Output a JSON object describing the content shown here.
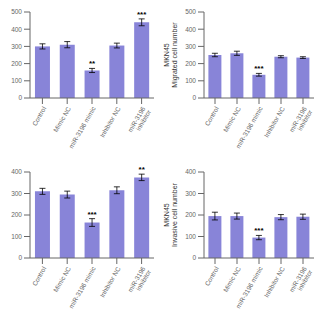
{
  "chart_data": [
    {
      "type": "bar",
      "categories": [
        "Control",
        "Mimic NC",
        "miR-3196 mimic",
        "Inhibitor NC",
        "miR-3196 inhibitor"
      ],
      "values": [
        300,
        310,
        160,
        305,
        440
      ],
      "errors": [
        15,
        18,
        12,
        14,
        20
      ],
      "annotations": [
        null,
        null,
        "**",
        null,
        "***"
      ],
      "ylim": [
        0,
        500
      ],
      "yticks": [
        0,
        100,
        200,
        300,
        400,
        500
      ],
      "color": "#8884d8"
    },
    {
      "type": "bar",
      "categories": [
        "Control",
        "Mimic NC",
        "miR-3196 mimic",
        "Inhibitor NC",
        "miR-3196 inhibitor"
      ],
      "values": [
        250,
        260,
        135,
        240,
        235
      ],
      "errors": [
        10,
        12,
        8,
        6,
        5
      ],
      "annotations": [
        null,
        null,
        "***",
        null,
        null
      ],
      "ylabel": "MKN45\nMigrated cell number",
      "ylim": [
        0,
        500
      ],
      "yticks": [
        0,
        100,
        200,
        300,
        400,
        500
      ],
      "color": "#8884d8"
    },
    {
      "type": "bar",
      "categories": [
        "Control",
        "Mimic NC",
        "miR-3196 mimic",
        "Inhibitor NC",
        "miR-3196 inhibitor"
      ],
      "values": [
        310,
        295,
        165,
        315,
        375
      ],
      "errors": [
        14,
        16,
        18,
        16,
        15
      ],
      "annotations": [
        null,
        null,
        "***",
        null,
        "**"
      ],
      "ylim": [
        0,
        400
      ],
      "yticks": [
        0,
        100,
        200,
        300,
        400
      ],
      "color": "#8884d8"
    },
    {
      "type": "bar",
      "categories": [
        "Control",
        "Mimic NC",
        "miR-3196 mimic",
        "Inhibitor NC",
        "miR-3196 inhibitor"
      ],
      "values": [
        195,
        195,
        95,
        190,
        192
      ],
      "errors": [
        18,
        14,
        10,
        12,
        12
      ],
      "annotations": [
        null,
        null,
        "***",
        null,
        null
      ],
      "ylabel": "MKN45\nInvasive cell number",
      "ylim": [
        0,
        400
      ],
      "yticks": [
        0,
        100,
        200,
        300,
        400
      ],
      "color": "#8884d8"
    }
  ]
}
